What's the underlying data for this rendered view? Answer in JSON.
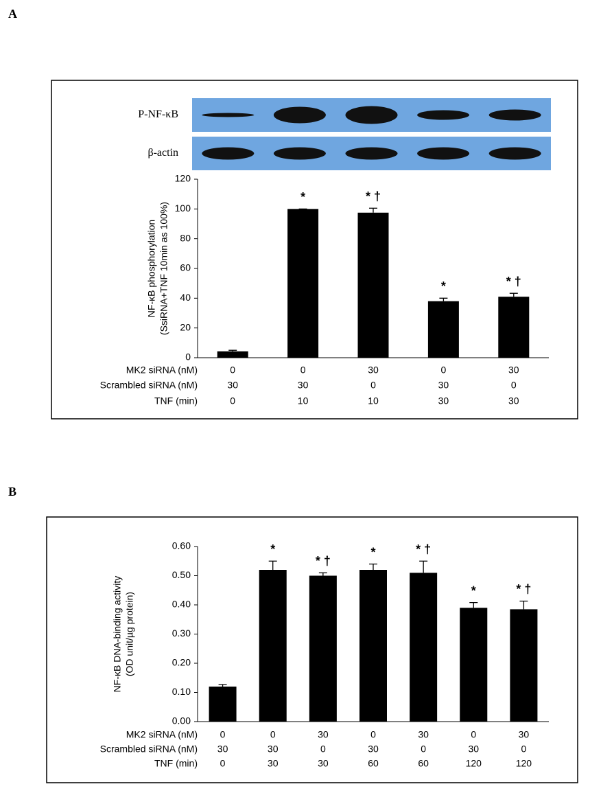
{
  "chart_data": [
    {
      "type": "bar",
      "panel": "A",
      "blot_labels": [
        "P-NF-κB",
        "β-actin"
      ],
      "y_label": [
        "NF-κB phosphorylation",
        "(SsiRNA+TNF 10min as 100%)"
      ],
      "ylim": [
        0,
        120
      ],
      "yticks": [
        0,
        20,
        40,
        60,
        80,
        100,
        120
      ],
      "values": [
        4.3,
        100,
        97.5,
        38,
        41
      ],
      "errors": [
        0.7,
        0,
        3,
        2,
        2.3
      ],
      "markers": [
        null,
        "*",
        "* †",
        "*",
        "* †"
      ],
      "color": "#000000",
      "conditions": [
        {
          "label": "MK2 siRNA (nM)",
          "values": [
            0,
            0,
            30,
            0,
            30
          ]
        },
        {
          "label": "Scrambled siRNA (nM)",
          "values": [
            30,
            30,
            0,
            30,
            0
          ]
        },
        {
          "label": "TNF (min)",
          "values": [
            0,
            10,
            10,
            30,
            30
          ]
        }
      ]
    },
    {
      "type": "bar",
      "panel": "B",
      "y_label": [
        "NF-κB DNA-binding activity",
        "(OD unit/µg protein)"
      ],
      "ylim": [
        0,
        0.6
      ],
      "yticks": [
        {
          "value": 0,
          "label": "0.00"
        },
        {
          "value": 0.1,
          "label": "0.10"
        },
        {
          "value": 0.2,
          "label": "0.20"
        },
        {
          "value": 0.3,
          "label": "0.30"
        },
        {
          "value": 0.4,
          "label": "0.40"
        },
        {
          "value": 0.5,
          "label": "0.50"
        },
        {
          "value": 0.6,
          "label": "0.60"
        }
      ],
      "values": [
        0.12,
        0.52,
        0.5,
        0.52,
        0.51,
        0.39,
        0.385
      ],
      "errors": [
        0.007,
        0.03,
        0.01,
        0.02,
        0.04,
        0.018,
        0.028
      ],
      "markers": [
        null,
        "*",
        "* †",
        "*",
        "* †",
        "*",
        "* †"
      ],
      "color": "#000000",
      "conditions": [
        {
          "label": "MK2 siRNA (nM)",
          "values": [
            0,
            0,
            30,
            0,
            30,
            0,
            30
          ]
        },
        {
          "label": "Scrambled siRNA (nM)",
          "values": [
            30,
            30,
            0,
            30,
            0,
            30,
            0
          ]
        },
        {
          "label": "TNF (min)",
          "values": [
            0,
            30,
            30,
            60,
            60,
            120,
            120
          ]
        }
      ]
    }
  ]
}
